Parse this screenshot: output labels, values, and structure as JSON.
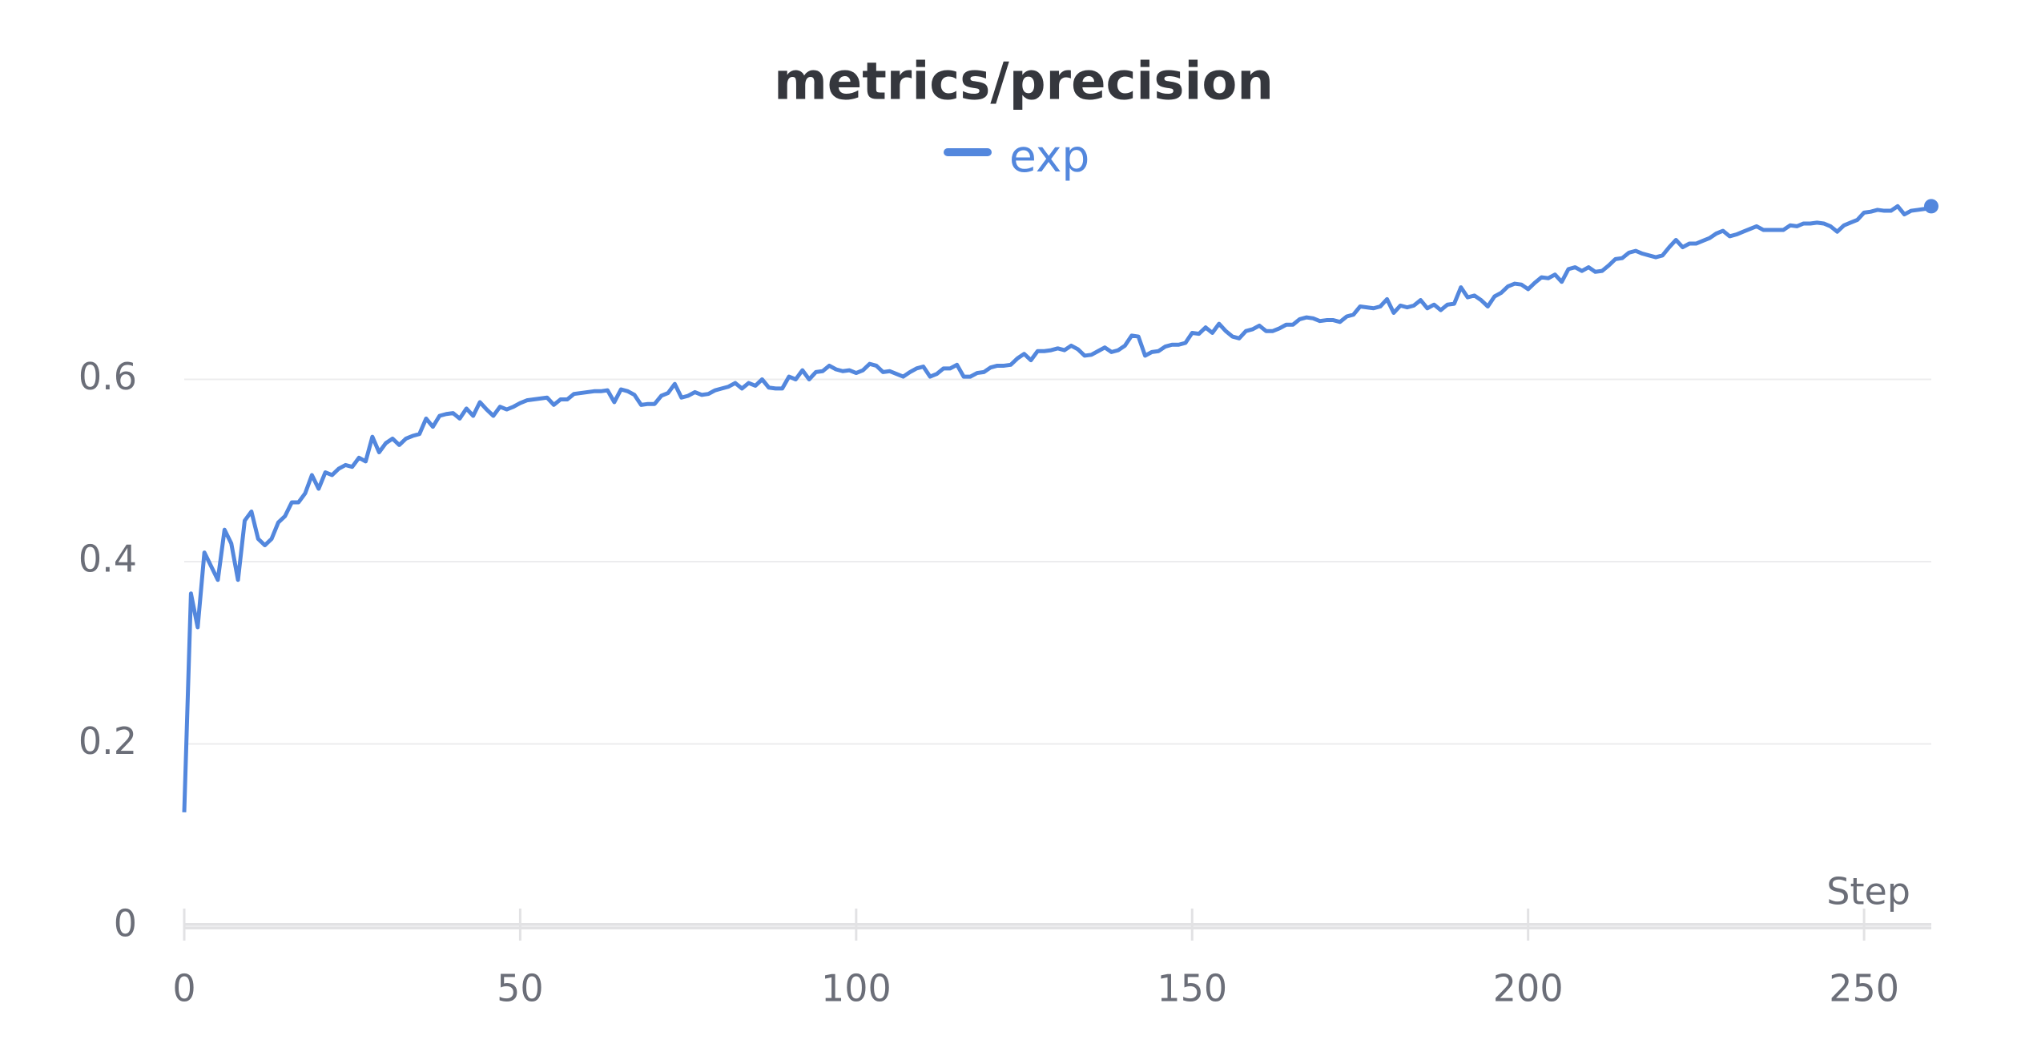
{
  "chart_data": {
    "type": "line",
    "title": "metrics/precision",
    "xlabel": "Step",
    "x": [
      0,
      1,
      2,
      3,
      4,
      5,
      6,
      7,
      8,
      9,
      10,
      11,
      12,
      13,
      14,
      15,
      16,
      17,
      18,
      19,
      20,
      21,
      22,
      23,
      24,
      25,
      26,
      27,
      28,
      29,
      30,
      31,
      32,
      33,
      34,
      35,
      36,
      37,
      38,
      39,
      40,
      41,
      42,
      43,
      44,
      45,
      46,
      47,
      48,
      49,
      50,
      51,
      52,
      53,
      54,
      55,
      56,
      57,
      58,
      59,
      60,
      61,
      62,
      63,
      64,
      65,
      66,
      67,
      68,
      69,
      70,
      71,
      72,
      73,
      74,
      75,
      76,
      77,
      78,
      79,
      80,
      81,
      82,
      83,
      84,
      85,
      86,
      87,
      88,
      89,
      90,
      91,
      92,
      93,
      94,
      95,
      96,
      97,
      98,
      99,
      100,
      101,
      102,
      103,
      104,
      105,
      106,
      107,
      108,
      109,
      110,
      111,
      112,
      113,
      114,
      115,
      116,
      117,
      118,
      119,
      120,
      121,
      122,
      123,
      124,
      125,
      126,
      127,
      128,
      129,
      130,
      131,
      132,
      133,
      134,
      135,
      136,
      137,
      138,
      139,
      140,
      141,
      142,
      143,
      144,
      145,
      146,
      147,
      148,
      149,
      150,
      151,
      152,
      153,
      154,
      155,
      156,
      157,
      158,
      159,
      160,
      161,
      162,
      163,
      164,
      165,
      166,
      167,
      168,
      169,
      170,
      171,
      172,
      173,
      174,
      175,
      176,
      177,
      178,
      179,
      180,
      181,
      182,
      183,
      184,
      185,
      186,
      187,
      188,
      189,
      190,
      191,
      192,
      193,
      194,
      195,
      196,
      197,
      198,
      199,
      200,
      201,
      202,
      203,
      204,
      205,
      206,
      207,
      208,
      209,
      210,
      211,
      212,
      213,
      214,
      215,
      216,
      217,
      218,
      219,
      220,
      221,
      222,
      223,
      224,
      225,
      226,
      227,
      228,
      229,
      230,
      231,
      232,
      233,
      234,
      235,
      236,
      237,
      238,
      239,
      240,
      241,
      242,
      243,
      244,
      245,
      246,
      247,
      248,
      249,
      250,
      251,
      252,
      253,
      254,
      255,
      256,
      257,
      258,
      259,
      260
    ],
    "series": [
      {
        "name": "exp",
        "color": "#5387dd",
        "values": [
          0.125,
          0.365,
          0.328,
          0.41,
          0.395,
          0.38,
          0.435,
          0.42,
          0.38,
          0.445,
          0.455,
          0.425,
          0.418,
          0.425,
          0.443,
          0.45,
          0.465,
          0.465,
          0.475,
          0.495,
          0.48,
          0.498,
          0.495,
          0.502,
          0.506,
          0.504,
          0.514,
          0.51,
          0.537,
          0.52,
          0.53,
          0.535,
          0.528,
          0.535,
          0.538,
          0.54,
          0.557,
          0.548,
          0.56,
          0.562,
          0.563,
          0.557,
          0.568,
          0.56,
          0.575,
          0.567,
          0.56,
          0.57,
          0.567,
          0.57,
          0.574,
          0.577,
          0.578,
          0.579,
          0.58,
          0.572,
          0.578,
          0.578,
          0.584,
          0.585,
          0.586,
          0.587,
          0.587,
          0.588,
          0.575,
          0.589,
          0.587,
          0.583,
          0.572,
          0.573,
          0.573,
          0.582,
          0.585,
          0.595,
          0.58,
          0.582,
          0.586,
          0.583,
          0.584,
          0.588,
          0.59,
          0.592,
          0.596,
          0.59,
          0.596,
          0.593,
          0.6,
          0.591,
          0.59,
          0.59,
          0.603,
          0.6,
          0.61,
          0.6,
          0.608,
          0.609,
          0.615,
          0.611,
          0.609,
          0.61,
          0.607,
          0.61,
          0.617,
          0.615,
          0.608,
          0.609,
          0.606,
          0.603,
          0.608,
          0.612,
          0.614,
          0.603,
          0.606,
          0.612,
          0.612,
          0.616,
          0.603,
          0.603,
          0.607,
          0.608,
          0.613,
          0.615,
          0.615,
          0.616,
          0.623,
          0.628,
          0.621,
          0.631,
          0.631,
          0.632,
          0.634,
          0.632,
          0.637,
          0.633,
          0.626,
          0.627,
          0.631,
          0.635,
          0.63,
          0.632,
          0.637,
          0.648,
          0.647,
          0.626,
          0.63,
          0.631,
          0.636,
          0.638,
          0.638,
          0.64,
          0.651,
          0.65,
          0.657,
          0.651,
          0.661,
          0.653,
          0.647,
          0.645,
          0.653,
          0.655,
          0.659,
          0.653,
          0.653,
          0.656,
          0.66,
          0.66,
          0.666,
          0.668,
          0.667,
          0.664,
          0.665,
          0.665,
          0.663,
          0.669,
          0.671,
          0.68,
          0.679,
          0.678,
          0.68,
          0.688,
          0.673,
          0.681,
          0.679,
          0.681,
          0.687,
          0.678,
          0.682,
          0.676,
          0.682,
          0.683,
          0.701,
          0.69,
          0.692,
          0.687,
          0.68,
          0.691,
          0.695,
          0.702,
          0.705,
          0.704,
          0.699,
          0.706,
          0.712,
          0.711,
          0.715,
          0.707,
          0.721,
          0.723,
          0.719,
          0.723,
          0.718,
          0.719,
          0.725,
          0.732,
          0.733,
          0.739,
          0.741,
          0.738,
          0.736,
          0.734,
          0.736,
          0.745,
          0.753,
          0.745,
          0.749,
          0.749,
          0.752,
          0.755,
          0.76,
          0.763,
          0.757,
          0.759,
          0.762,
          0.765,
          0.768,
          0.764,
          0.764,
          0.764,
          0.764,
          0.769,
          0.768,
          0.771,
          0.771,
          0.772,
          0.771,
          0.768,
          0.762,
          0.769,
          0.772,
          0.775,
          0.783,
          0.784,
          0.786,
          0.785,
          0.785,
          0.79,
          0.781,
          0.785,
          0.786,
          0.787,
          0.79
        ]
      }
    ],
    "xlim": [
      0,
      260
    ],
    "xticks": [
      0,
      50,
      100,
      150,
      200,
      250
    ],
    "ylim": [
      0,
      0.8
    ],
    "yticks": [
      0,
      0.2,
      0.4,
      0.6
    ],
    "grid": true
  }
}
